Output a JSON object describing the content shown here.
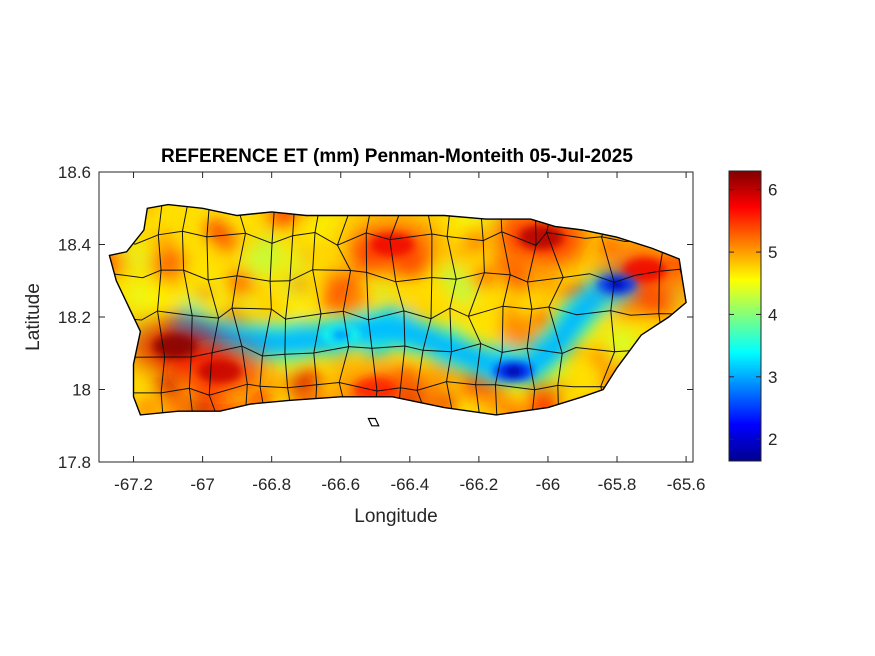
{
  "chart_data": {
    "type": "heatmap",
    "title": "REFERENCE ET (mm) Penman-Monteith 05-Jul-2025",
    "xlabel": "Longitude",
    "ylabel": "Latitude",
    "xlim": [
      -67.3,
      -65.58
    ],
    "ylim": [
      17.8,
      18.6
    ],
    "xticks": [
      -67.2,
      -67,
      -66.8,
      -66.6,
      -66.4,
      -66.2,
      -66,
      -65.8,
      -65.6
    ],
    "xtick_labels": [
      "-67.2",
      "-67",
      "-66.8",
      "-66.6",
      "-66.4",
      "-66.2",
      "-66",
      "-65.8",
      "-65.6"
    ],
    "yticks": [
      17.8,
      18,
      18.2,
      18.4,
      18.6
    ],
    "ytick_labels": [
      "17.8",
      "18",
      "18.2",
      "18.4",
      "18.6"
    ],
    "colorbar": {
      "colormap": "jet",
      "range": [
        1.65,
        6.3
      ],
      "ticks": [
        2,
        3,
        4,
        5,
        6
      ],
      "tick_labels": [
        "2",
        "3",
        "4",
        "5",
        "6"
      ]
    },
    "grid": false,
    "background": "#ffffff",
    "low_et_band": [
      [
        -67.05,
        18.16
      ],
      [
        -66.9,
        18.14
      ],
      [
        -66.78,
        18.13
      ],
      [
        -66.65,
        18.14
      ],
      [
        -66.55,
        18.16
      ],
      [
        -66.45,
        18.17
      ],
      [
        -66.35,
        18.14
      ],
      [
        -66.25,
        18.1
      ],
      [
        -66.15,
        18.06
      ],
      [
        -66.05,
        18.06
      ],
      [
        -65.98,
        18.12
      ],
      [
        -65.92,
        18.2
      ],
      [
        -65.85,
        18.27
      ],
      [
        -65.78,
        18.29
      ]
    ],
    "hotspots": [
      {
        "lon": -67.08,
        "lat": 18.12,
        "value": 6.3
      },
      {
        "lon": -66.45,
        "lat": 18.4,
        "value": 5.8
      },
      {
        "lon": -66.02,
        "lat": 18.42,
        "value": 6.1
      },
      {
        "lon": -65.72,
        "lat": 18.33,
        "value": 5.8
      },
      {
        "lon": -66.5,
        "lat": 18.0,
        "value": 5.6
      },
      {
        "lon": -66.95,
        "lat": 18.05,
        "value": 6.0
      }
    ],
    "coldspots": [
      {
        "lon": -66.1,
        "lat": 18.05,
        "value": 1.8
      },
      {
        "lon": -65.8,
        "lat": 18.29,
        "value": 1.9
      },
      {
        "lon": -66.6,
        "lat": 18.15,
        "value": 2.9
      }
    ],
    "coastline": [
      [
        -67.27,
        18.37
      ],
      [
        -67.22,
        18.38
      ],
      [
        -67.17,
        18.44
      ],
      [
        -67.16,
        18.5
      ],
      [
        -67.1,
        18.51
      ],
      [
        -67.0,
        18.5
      ],
      [
        -66.9,
        18.48
      ],
      [
        -66.8,
        18.49
      ],
      [
        -66.7,
        18.48
      ],
      [
        -66.6,
        18.48
      ],
      [
        -66.45,
        18.48
      ],
      [
        -66.3,
        18.48
      ],
      [
        -66.18,
        18.47
      ],
      [
        -66.1,
        18.47
      ],
      [
        -66.05,
        18.47
      ],
      [
        -65.98,
        18.45
      ],
      [
        -65.9,
        18.44
      ],
      [
        -65.8,
        18.42
      ],
      [
        -65.7,
        18.39
      ],
      [
        -65.62,
        18.36
      ],
      [
        -65.61,
        18.3
      ],
      [
        -65.6,
        18.24
      ],
      [
        -65.65,
        18.2
      ],
      [
        -65.73,
        18.15
      ],
      [
        -65.8,
        18.06
      ],
      [
        -65.84,
        18.0
      ],
      [
        -65.9,
        17.98
      ],
      [
        -66.0,
        17.95
      ],
      [
        -66.15,
        17.93
      ],
      [
        -66.3,
        17.95
      ],
      [
        -66.45,
        17.98
      ],
      [
        -66.6,
        17.98
      ],
      [
        -66.75,
        17.97
      ],
      [
        -66.86,
        17.96
      ],
      [
        -66.95,
        17.94
      ],
      [
        -67.07,
        17.94
      ],
      [
        -67.18,
        17.93
      ],
      [
        -67.2,
        17.98
      ],
      [
        -67.2,
        18.07
      ],
      [
        -67.18,
        18.16
      ],
      [
        -67.25,
        18.3
      ],
      [
        -67.27,
        18.37
      ]
    ],
    "islets": [
      [
        [
          -66.52,
          17.92
        ],
        [
          -66.5,
          17.92
        ],
        [
          -66.49,
          17.9
        ],
        [
          -66.51,
          17.9
        ]
      ]
    ]
  }
}
